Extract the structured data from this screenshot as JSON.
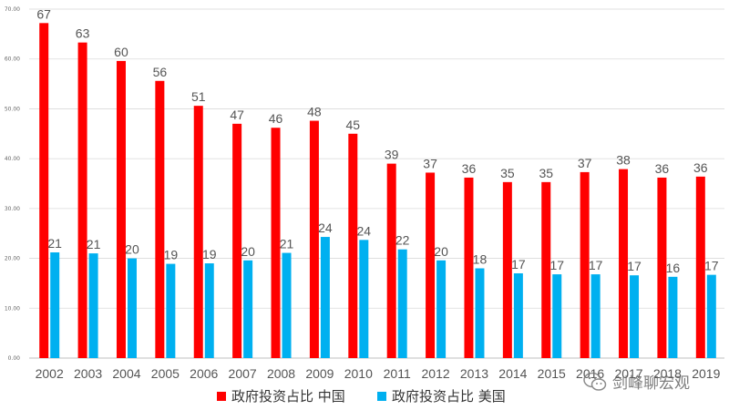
{
  "chart_data": {
    "type": "bar",
    "categories": [
      "2002",
      "2003",
      "2004",
      "2005",
      "2006",
      "2007",
      "2008",
      "2009",
      "2010",
      "2011",
      "2012",
      "2013",
      "2014",
      "2015",
      "2016",
      "2017",
      "2018",
      "2019"
    ],
    "series": [
      {
        "name": "政府投资占比 中国",
        "color": "#ff0000",
        "values": [
          67.2,
          63.3,
          59.6,
          55.6,
          50.6,
          47.0,
          46.2,
          47.6,
          45.0,
          39.0,
          37.2,
          36.2,
          35.3,
          35.3,
          37.3,
          37.9,
          36.2,
          36.4
        ]
      },
      {
        "name": "政府投资占比 美国",
        "color": "#00b0f0",
        "values": [
          21.2,
          21.0,
          20.0,
          18.9,
          19.0,
          19.6,
          21.1,
          24.3,
          23.7,
          21.8,
          19.6,
          18.0,
          17.0,
          16.8,
          16.8,
          16.6,
          16.3,
          16.7
        ]
      }
    ],
    "ylim": [
      0,
      70
    ],
    "yticks": [
      "0.00",
      "10.00",
      "20.00",
      "30.00",
      "40.00",
      "50.00",
      "60.00",
      "70.00"
    ],
    "grid": true,
    "legend_position": "bottom"
  },
  "watermark": {
    "text": "剑峰聊宏观",
    "icon": "wechat-icon"
  }
}
